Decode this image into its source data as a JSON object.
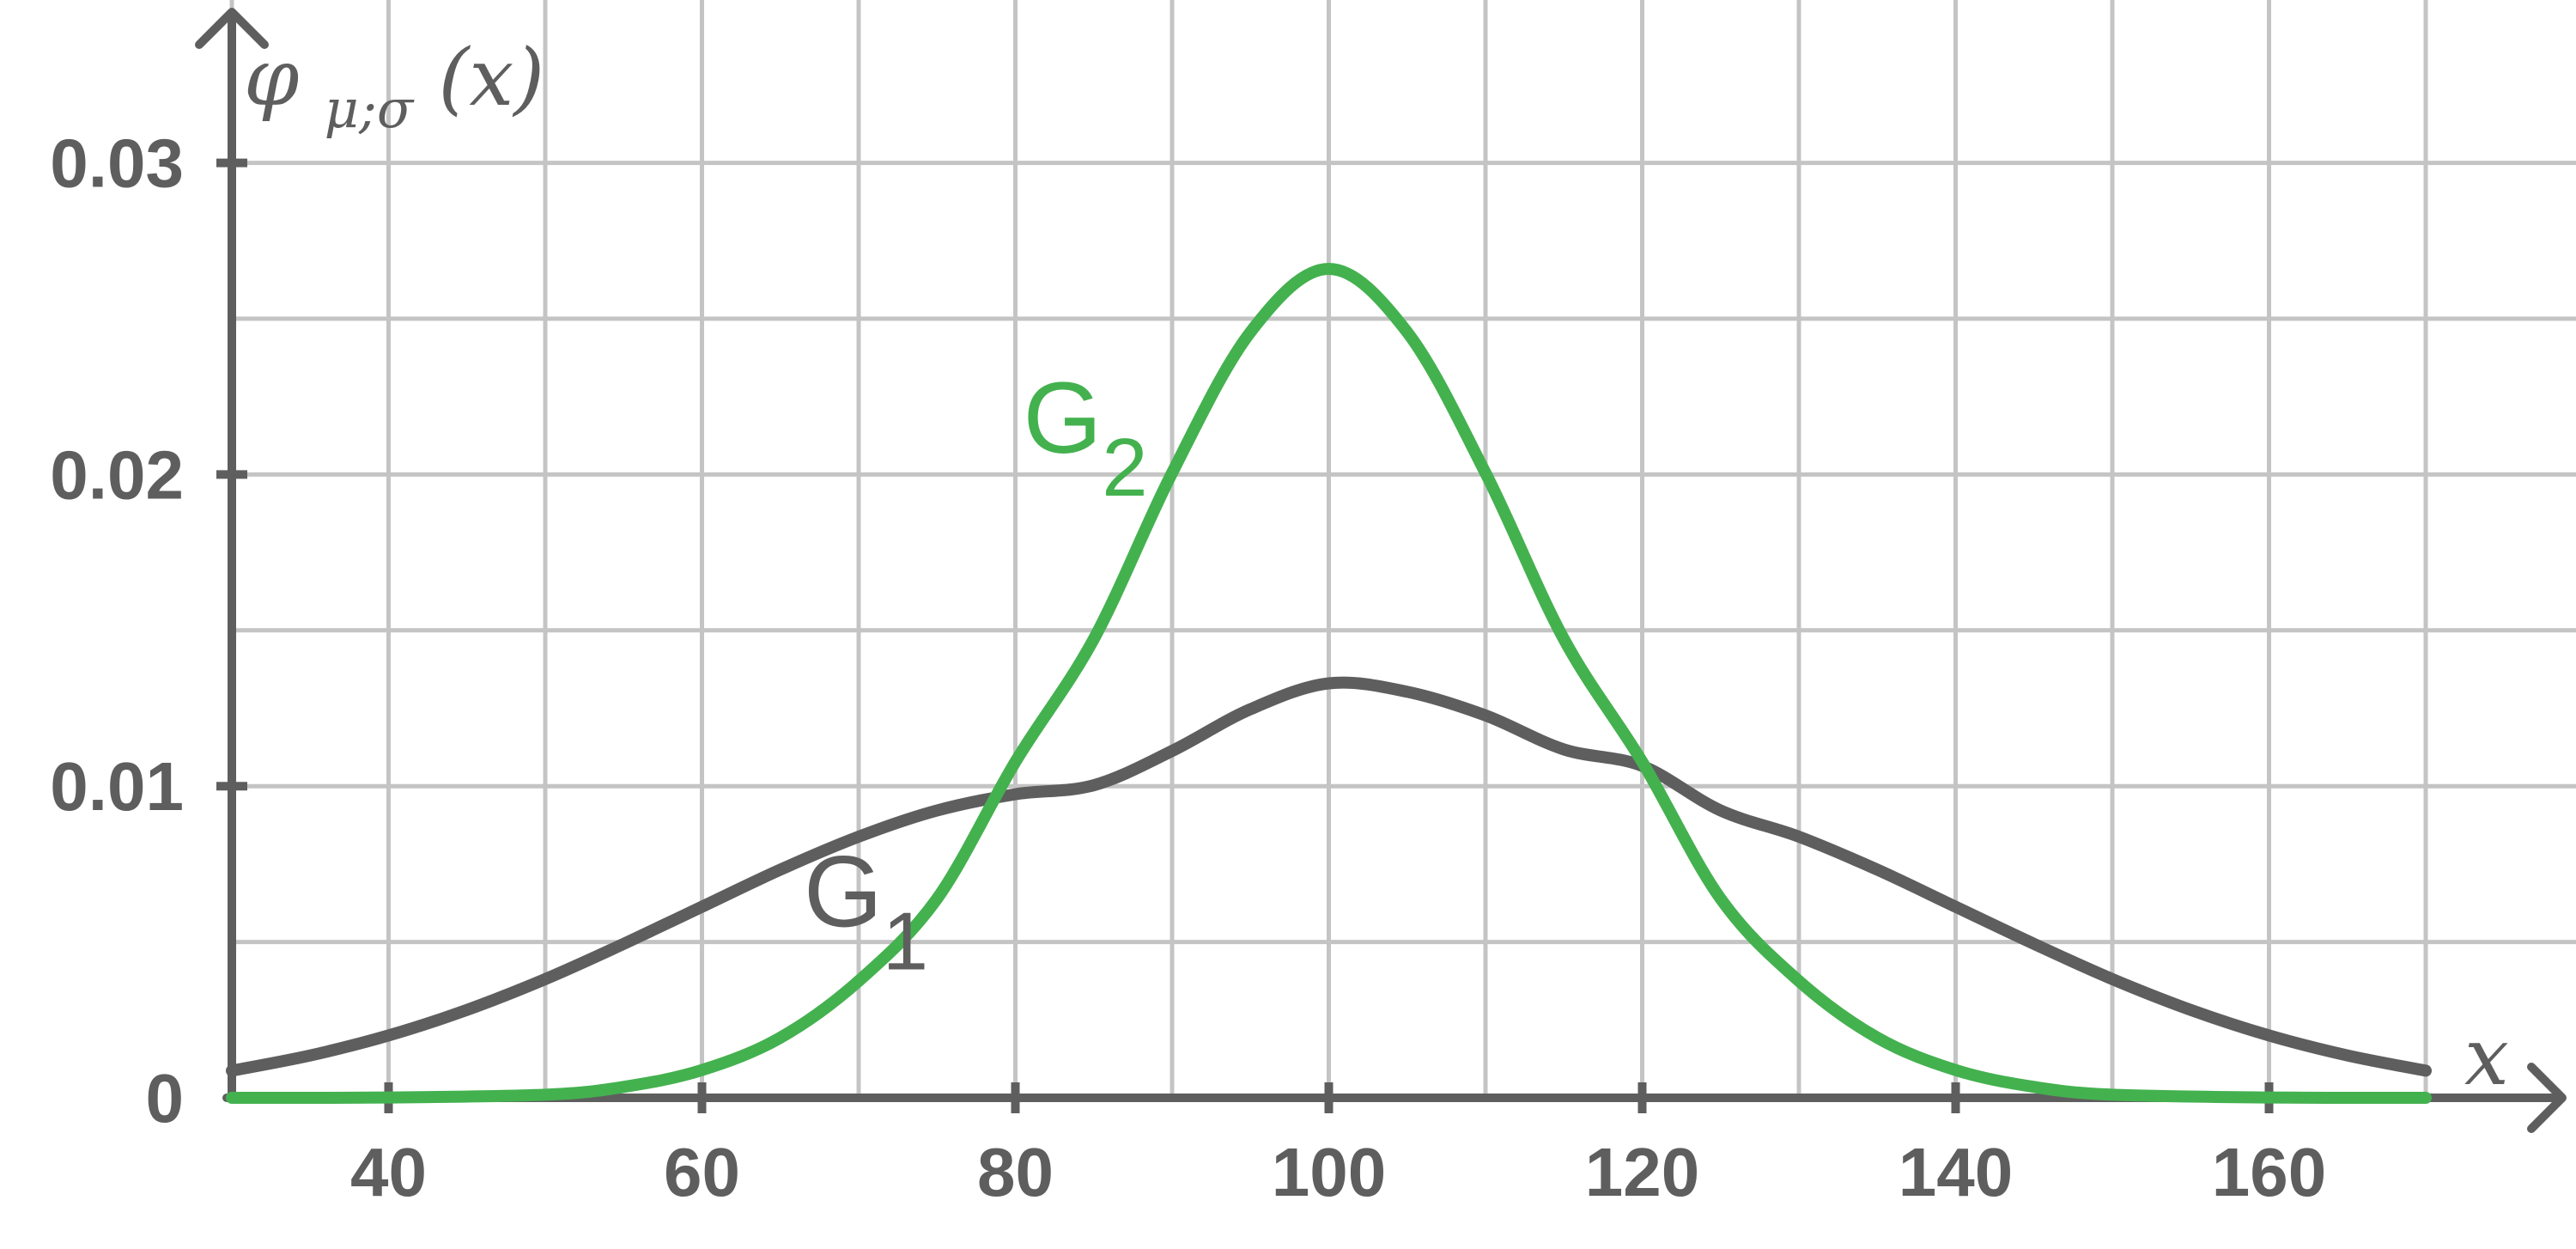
{
  "chart_data": {
    "type": "line",
    "xlabel": "x",
    "ylabel": "φ_{μ;σ}(x)",
    "ylabel_parts": {
      "main": "φ",
      "sub": "μ;σ",
      "arg": "(x)"
    },
    "xlim": [
      25,
      175
    ],
    "ylim": [
      0,
      0.034
    ],
    "x_ticks": [
      40,
      60,
      80,
      100,
      120,
      140,
      160
    ],
    "x_tick_labels": [
      "40",
      "60",
      "80",
      "100",
      "120",
      "140",
      "160"
    ],
    "x_grid": [
      30,
      40,
      50,
      60,
      70,
      80,
      90,
      100,
      110,
      120,
      130,
      140,
      150,
      160,
      170
    ],
    "y_ticks": [
      0,
      0.01,
      0.02,
      0.03
    ],
    "y_tick_labels": [
      "0",
      "0.01",
      "0.02",
      "0.03"
    ],
    "y_grid": [
      0.005,
      0.01,
      0.015,
      0.02,
      0.025,
      0.03
    ],
    "grid": true,
    "series": [
      {
        "name": "G1",
        "label_main": "G",
        "label_sub": "1",
        "color": "#5e5e5e",
        "label_anchor": [
          70,
          0.0066
        ],
        "x": [
          30,
          35,
          40,
          45,
          50,
          55,
          60,
          65,
          70,
          75,
          80,
          85,
          90,
          95,
          100,
          105,
          110,
          115,
          120,
          125,
          130,
          135,
          140,
          145,
          150,
          155,
          160,
          165,
          170
        ],
        "y": [
          0.00087,
          0.00136,
          0.002,
          0.00282,
          0.00381,
          0.00494,
          0.00613,
          0.00732,
          0.00838,
          0.00922,
          0.00974,
          0.01003,
          0.01113,
          0.01247,
          0.0133,
          0.01303,
          0.01227,
          0.01118,
          0.01065,
          0.00922,
          0.00838,
          0.00732,
          0.00613,
          0.00494,
          0.00381,
          0.00282,
          0.002,
          0.00136,
          0.00087
        ]
      },
      {
        "name": "G2",
        "label_main": "G",
        "label_sub": "2",
        "color": "#44b14f",
        "label_anchor": [
          84,
          0.0218
        ],
        "x": [
          30,
          40,
          50,
          55,
          60,
          65,
          70,
          75,
          80,
          85,
          90,
          95,
          100,
          105,
          110,
          115,
          120,
          125,
          130,
          135,
          140,
          145,
          150,
          160,
          170
        ],
        "y": [
          0.0,
          1e-05,
          0.0001,
          0.00035,
          0.00089,
          0.00193,
          0.00375,
          0.00639,
          0.01078,
          0.01472,
          0.02005,
          0.02457,
          0.0266,
          0.02457,
          0.02005,
          0.01472,
          0.01078,
          0.00639,
          0.00375,
          0.00193,
          0.00089,
          0.00035,
          0.0001,
          1e-05,
          0.0
        ]
      }
    ]
  }
}
